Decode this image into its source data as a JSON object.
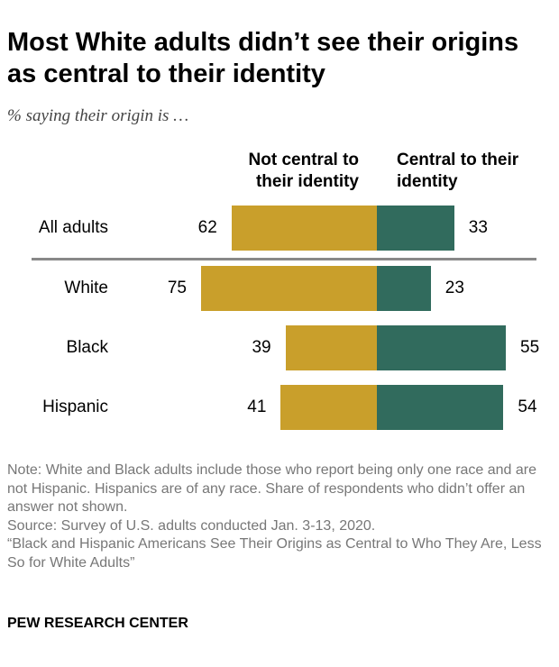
{
  "title": "Most White adults didn’t see their origins as central to their identity",
  "subtitle": "% saying their origin is …",
  "colors": {
    "not_central": "#C99F2B",
    "central": "#316B5D"
  },
  "chart_data": {
    "type": "bar",
    "orientation": "horizontal-diverging",
    "categories": [
      "All adults",
      "White",
      "Black",
      "Hispanic"
    ],
    "series": [
      {
        "name": "Not central to their identity",
        "values": [
          62,
          75,
          39,
          41
        ]
      },
      {
        "name": "Central to their identity",
        "values": [
          33,
          23,
          55,
          54
        ]
      }
    ]
  },
  "note": {
    "lines": [
      "Note: White and Black adults include those who report being only one race and are not Hispanic. Hispanics are of any race. Share of respondents who didn’t offer an answer not shown.",
      "Source: Survey of U.S. adults conducted Jan. 3-13, 2020.",
      "“Black and Hispanic Americans See Their Origins as Central to Who They Are, Less So for White Adults”"
    ]
  },
  "brand": "PEW RESEARCH CENTER"
}
